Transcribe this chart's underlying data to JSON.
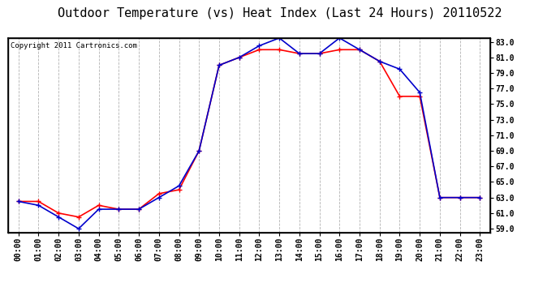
{
  "title": "Outdoor Temperature (vs) Heat Index (Last 24 Hours) 20110522",
  "copyright_text": "Copyright 2011 Cartronics.com",
  "hours": [
    "00:00",
    "01:00",
    "02:00",
    "03:00",
    "04:00",
    "05:00",
    "06:00",
    "07:00",
    "08:00",
    "09:00",
    "10:00",
    "11:00",
    "12:00",
    "13:00",
    "14:00",
    "15:00",
    "16:00",
    "17:00",
    "18:00",
    "19:00",
    "20:00",
    "21:00",
    "22:00",
    "23:00"
  ],
  "temp": [
    62.5,
    62.5,
    61.0,
    60.5,
    62.0,
    61.5,
    61.5,
    63.5,
    64.0,
    69.0,
    80.0,
    81.0,
    82.0,
    82.0,
    81.5,
    81.5,
    82.0,
    82.0,
    80.5,
    76.0,
    76.0,
    63.0,
    63.0,
    63.0
  ],
  "heat_index": [
    62.5,
    62.0,
    60.5,
    59.0,
    61.5,
    61.5,
    61.5,
    63.0,
    64.5,
    69.0,
    80.0,
    81.0,
    82.5,
    83.5,
    81.5,
    81.5,
    83.5,
    82.0,
    80.5,
    79.5,
    76.5,
    63.0,
    63.0,
    63.0
  ],
  "temp_color": "#ff0000",
  "heat_index_color": "#0000cc",
  "bg_color": "#ffffff",
  "grid_color": "#aaaaaa",
  "ylim_min": 59.0,
  "ylim_max": 83.0,
  "ytick_step": 2.0,
  "title_fontsize": 11,
  "copyright_fontsize": 6.5,
  "tick_fontsize": 7,
  "marker": "+",
  "marker_size": 4,
  "line_width": 1.2
}
